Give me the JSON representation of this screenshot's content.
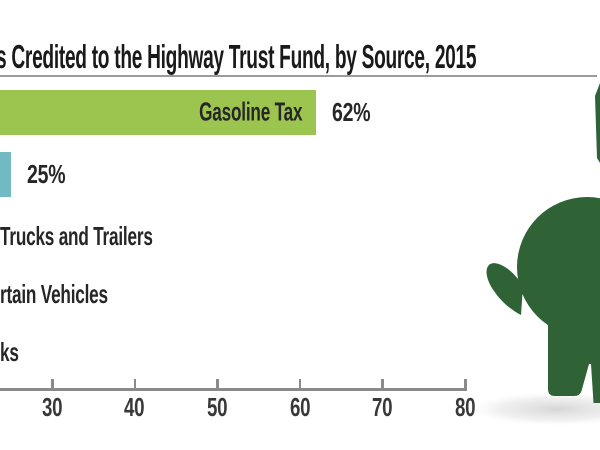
{
  "chart_data": {
    "type": "bar",
    "orientation": "horizontal",
    "title": "s Credited to the Highway Trust Fund, by Source, 2015",
    "rows": [
      {
        "label": "Gasoline Tax",
        "label_placement": "inside-bar-end",
        "value": 62,
        "value_label": "62%",
        "bar_color": "#9cc550"
      },
      {
        "label": "",
        "label_placement": "none",
        "value": 25,
        "value_label": "25%",
        "bar_color": "#72bac3"
      },
      {
        "label": "Trucks and Trailers",
        "label_placement": "axis",
        "value": null,
        "value_label": "",
        "bar_color": null
      },
      {
        "label": "rtain Vehicles",
        "label_placement": "axis",
        "value": null,
        "value_label": "",
        "bar_color": null
      },
      {
        "label": "ks",
        "label_placement": "axis",
        "value": null,
        "value_label": "",
        "bar_color": null
      }
    ],
    "x_ticks": [
      "30",
      "40",
      "50",
      "60",
      "70",
      "80"
    ],
    "x_tick_values": [
      30,
      40,
      50,
      60,
      70,
      80
    ],
    "xlabel": "",
    "ylabel": "",
    "unit": "%",
    "legend": "none",
    "grid": "off"
  },
  "illustration": {
    "name": "piggy-bank-rear-view",
    "color": "#2f6336"
  },
  "styles": {
    "background": "#ffffff",
    "title_color": "#1a1a1a",
    "text_color": "#262626",
    "axis_color": "#8a8a8a",
    "rule_color": "#9b9b9b"
  }
}
